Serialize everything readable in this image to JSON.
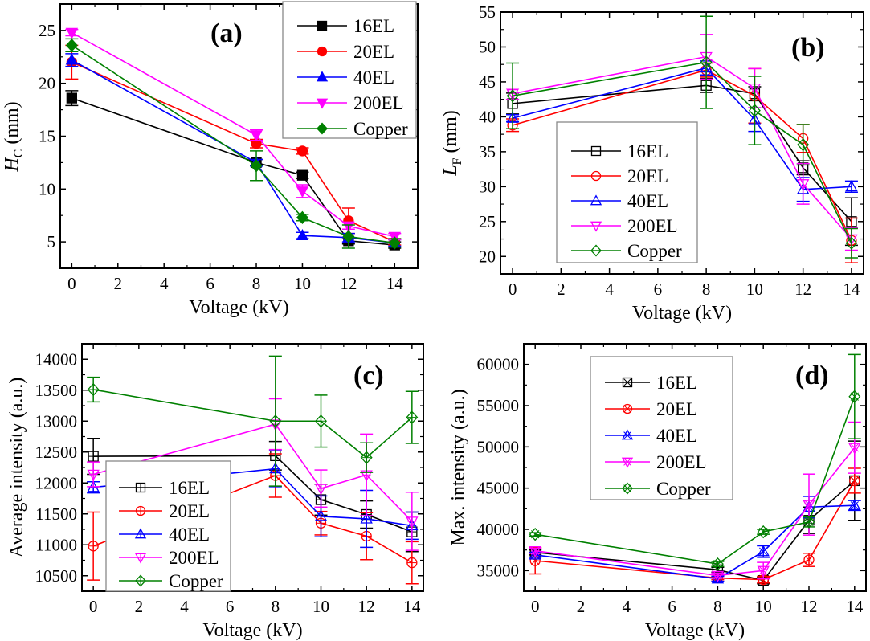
{
  "figure": {
    "series_colors": {
      "16EL": "#000000",
      "20EL": "#ff0000",
      "40EL": "#0000ff",
      "200EL": "#ff00ff",
      "Copper": "#008000"
    }
  },
  "chart_data": [
    {
      "id": "a",
      "type": "line",
      "panel_label": "(a)",
      "title": "",
      "xlabel": "Voltage (kV)",
      "ylabel_main": "H",
      "ylabel_sub": "C",
      "ylabel_unit": " (mm)",
      "x": [
        0,
        8,
        10,
        12,
        14
      ],
      "xlim": [
        -0.5,
        15
      ],
      "ylim": [
        2.5,
        27.5
      ],
      "xticks": [
        0,
        2,
        4,
        6,
        8,
        10,
        12,
        14
      ],
      "yticks": [
        5,
        10,
        15,
        20,
        25
      ],
      "marker_style": "filled",
      "legend_position": "top-right",
      "series": [
        {
          "name": "16EL",
          "marker": "square",
          "values": [
            18.6,
            12.5,
            11.3,
            5.1,
            4.7
          ],
          "errors": [
            0.7,
            0.3,
            0.3,
            0.3,
            0.3
          ]
        },
        {
          "name": "20EL",
          "marker": "circle",
          "values": [
            22.0,
            14.3,
            13.6,
            7.0,
            5.0
          ],
          "errors": [
            1.6,
            0.4,
            0.3,
            1.2,
            0.3
          ]
        },
        {
          "name": "40EL",
          "marker": "triangle-up",
          "values": [
            22.2,
            12.5,
            5.6,
            5.4,
            4.9
          ],
          "errors": [
            0.6,
            0.3,
            0.3,
            0.4,
            0.3
          ]
        },
        {
          "name": "200EL",
          "marker": "triangle-down",
          "values": [
            24.8,
            15.1,
            9.8,
            6.5,
            5.5
          ],
          "errors": [
            0.3,
            0.5,
            0.6,
            0.3,
            0.3
          ]
        },
        {
          "name": "Copper",
          "marker": "diamond",
          "values": [
            23.6,
            12.2,
            7.3,
            5.5,
            4.9
          ],
          "errors": [
            0.6,
            1.4,
            0.3,
            1.1,
            0.4
          ]
        }
      ]
    },
    {
      "id": "b",
      "type": "line",
      "panel_label": "(b)",
      "title": "",
      "xlabel": "Voltage (kV)",
      "ylabel_main": "L",
      "ylabel_sub": "F",
      "ylabel_unit": " (mm)",
      "x": [
        0,
        8,
        10,
        12,
        14
      ],
      "xlim": [
        -0.5,
        14.5
      ],
      "ylim": [
        17.5,
        55
      ],
      "xticks": [
        0,
        2,
        4,
        6,
        8,
        10,
        12,
        14
      ],
      "yticks": [
        20,
        25,
        30,
        35,
        40,
        45,
        50,
        55
      ],
      "marker_style": "open",
      "legend_position": "center-left",
      "series": [
        {
          "name": "16EL",
          "marker": "square",
          "values": [
            41.9,
            44.5,
            43.3,
            32.7,
            25.0
          ],
          "errors": [
            1.5,
            1.0,
            1.0,
            1.0,
            3.4
          ]
        },
        {
          "name": "20EL",
          "marker": "circle",
          "values": [
            38.8,
            46.7,
            43.0,
            36.9,
            22.3
          ],
          "errors": [
            0.9,
            1.0,
            3.9,
            2.0,
            3.2
          ]
        },
        {
          "name": "40EL",
          "marker": "triangle-up",
          "values": [
            39.8,
            47.0,
            39.6,
            29.6,
            30.0
          ],
          "errors": [
            0.5,
            1.0,
            1.7,
            1.7,
            0.8
          ]
        },
        {
          "name": "200EL",
          "marker": "triangle-down",
          "values": [
            43.3,
            48.6,
            44.1,
            30.4,
            22.5
          ],
          "errors": [
            0.8,
            3.2,
            2.8,
            2.9,
            1.6
          ]
        },
        {
          "name": "Copper",
          "marker": "diamond",
          "values": [
            43.0,
            47.8,
            40.9,
            36.0,
            21.9
          ],
          "errors": [
            4.7,
            6.6,
            4.9,
            2.9,
            2.1
          ]
        }
      ]
    },
    {
      "id": "c",
      "type": "line",
      "panel_label": "(c)",
      "title": "",
      "xlabel": "Voltage (kV)",
      "ylabel_main": "Average intensity (a.u.)",
      "ylabel_sub": "",
      "ylabel_unit": "",
      "x": [
        0,
        8,
        10,
        12,
        14
      ],
      "xlim": [
        -0.5,
        14.5
      ],
      "ylim": [
        10250,
        14250
      ],
      "xticks": [
        0,
        2,
        4,
        6,
        8,
        10,
        12,
        14
      ],
      "yticks": [
        10500,
        11000,
        11500,
        12000,
        12500,
        13000,
        13500,
        14000
      ],
      "marker_style": "open-crossed",
      "legend_position": "bottom-left",
      "series": [
        {
          "name": "16EL",
          "marker": "square",
          "values": [
            12430,
            12440,
            11730,
            11490,
            11210
          ],
          "errors": [
            290,
            230,
            250,
            220,
            320
          ]
        },
        {
          "name": "20EL",
          "marker": "circle",
          "values": [
            10980,
            12120,
            11350,
            11140,
            10710
          ],
          "errors": [
            550,
            350,
            190,
            380,
            340
          ]
        },
        {
          "name": "40EL",
          "marker": "triangle-up",
          "values": [
            11930,
            12230,
            11460,
            11420,
            11310
          ],
          "errors": [
            90,
            290,
            330,
            460,
            220
          ]
        },
        {
          "name": "200EL",
          "marker": "triangle-down",
          "values": [
            12140,
            12950,
            11910,
            12130,
            11380
          ],
          "errors": [
            200,
            410,
            300,
            660,
            470
          ]
        },
        {
          "name": "Copper",
          "marker": "diamond",
          "values": [
            13510,
            13000,
            13000,
            12410,
            13060
          ],
          "errors": [
            200,
            1050,
            420,
            240,
            420
          ]
        }
      ]
    },
    {
      "id": "d",
      "type": "line",
      "panel_label": "(d)",
      "title": "",
      "xlabel": "Voltage (kV)",
      "ylabel_main": "Max.  intensity (a.u.)",
      "ylabel_sub": "",
      "ylabel_unit": "",
      "x": [
        0,
        8,
        10,
        12,
        14
      ],
      "xlim": [
        -0.5,
        14.5
      ],
      "ylim": [
        32500,
        62500
      ],
      "xticks": [
        0,
        2,
        4,
        6,
        8,
        10,
        12,
        14
      ],
      "yticks": [
        35000,
        40000,
        45000,
        50000,
        55000,
        60000
      ],
      "marker_style": "open-x",
      "legend_position": "top-left",
      "series": [
        {
          "name": "16EL",
          "marker": "square",
          "values": [
            37200,
            35100,
            33800,
            41100,
            45900
          ],
          "errors": [
            300,
            300,
            400,
            1600,
            4800
          ]
        },
        {
          "name": "20EL",
          "marker": "circle",
          "values": [
            36200,
            34100,
            33900,
            36300,
            45900
          ],
          "errors": [
            1600,
            200,
            400,
            800,
            1500
          ]
        },
        {
          "name": "40EL",
          "marker": "triangle-up",
          "values": [
            36900,
            34000,
            37300,
            42700,
            42900
          ],
          "errors": [
            300,
            300,
            700,
            1300,
            600
          ]
        },
        {
          "name": "200EL",
          "marker": "triangle-down",
          "values": [
            37400,
            34400,
            35000,
            43000,
            49900
          ],
          "errors": [
            300,
            300,
            1000,
            3700,
            3100
          ]
        },
        {
          "name": "Copper",
          "marker": "diamond",
          "values": [
            39400,
            35800,
            39700,
            40900,
            56100
          ],
          "errors": [
            200,
            300,
            300,
            600,
            5100
          ]
        }
      ]
    }
  ]
}
